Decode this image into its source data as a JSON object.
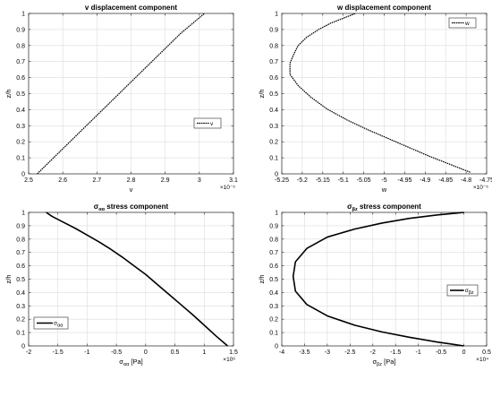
{
  "chart_data": [
    {
      "type": "line",
      "title": "v displacement component",
      "xlabel": "v",
      "ylabel": "z/h",
      "x_exponent": "×10⁻⁵",
      "xlim": [
        2.5,
        3.1
      ],
      "ylim": [
        0,
        1
      ],
      "xticks": [
        2.5,
        2.6,
        2.7,
        2.8,
        2.9,
        3.0,
        3.1
      ],
      "xtick_labels": [
        "2.5",
        "2.6",
        "2.7",
        "2.8",
        "2.9",
        "3",
        "3.1"
      ],
      "yticks": [
        0,
        0.1,
        0.2,
        0.3,
        0.4,
        0.5,
        0.6,
        0.7,
        0.8,
        0.9,
        1
      ],
      "ytick_labels": [
        "0",
        "0.1",
        "0.2",
        "0.3",
        "0.4",
        "0.5",
        "0.6",
        "0.7",
        "0.8",
        "0.9",
        "1"
      ],
      "legend": {
        "position": "middle-right",
        "style": "dashed"
      },
      "series": [
        {
          "name": "v",
          "style": "dashed",
          "width": 1.2,
          "x": [
            2.525,
            2.585,
            2.645,
            2.705,
            2.765,
            2.825,
            2.885,
            2.945,
            3.015
          ],
          "y": [
            0,
            0.125,
            0.25,
            0.375,
            0.5,
            0.625,
            0.75,
            0.875,
            1
          ]
        }
      ]
    },
    {
      "type": "line",
      "title": "w displacement component",
      "xlabel": "w",
      "ylabel": "z/h",
      "x_exponent": "×10⁻⁵",
      "xlim": [
        -5.25,
        -4.75
      ],
      "ylim": [
        0,
        1
      ],
      "xticks": [
        -5.25,
        -5.2,
        -5.15,
        -5.1,
        -5.05,
        -5.0,
        -4.95,
        -4.9,
        -4.85,
        -4.8,
        -4.75
      ],
      "xtick_labels": [
        "-5.25",
        "-5.2",
        "-5.15",
        "-5.1",
        "-5.05",
        "-5",
        "-4.95",
        "-4.9",
        "-4.85",
        "-4.8",
        "-4.75"
      ],
      "yticks": [
        0,
        0.1,
        0.2,
        0.3,
        0.4,
        0.5,
        0.6,
        0.7,
        0.8,
        0.9,
        1
      ],
      "ytick_labels": [
        "0",
        "0.1",
        "0.2",
        "0.3",
        "0.4",
        "0.5",
        "0.6",
        "0.7",
        "0.8",
        "0.9",
        "1"
      ],
      "legend": {
        "position": "top-right",
        "style": "dashed"
      },
      "series": [
        {
          "name": "w",
          "style": "dashed",
          "width": 1.2,
          "x": [
            -4.79,
            -4.84,
            -4.89,
            -4.94,
            -4.99,
            -5.04,
            -5.09,
            -5.14,
            -5.18,
            -5.21,
            -5.23,
            -5.23,
            -5.22,
            -5.21,
            -5.19,
            -5.16,
            -5.13,
            -5.1,
            -5.07
          ],
          "y": [
            0.01,
            0.06,
            0.11,
            0.165,
            0.22,
            0.275,
            0.335,
            0.405,
            0.48,
            0.55,
            0.62,
            0.69,
            0.75,
            0.8,
            0.85,
            0.9,
            0.94,
            0.97,
            1.0
          ]
        }
      ]
    },
    {
      "type": "line",
      "title": "σαα stress component",
      "title_symbol": "σ",
      "title_subscript": "αα",
      "title_rest": " stress component",
      "xlabel_symbol": "σ",
      "xlabel_subscript": "αα",
      "xlabel_rest": " [Pa]",
      "ylabel": "z/h",
      "x_exponent": "×10⁶",
      "xlim": [
        -2,
        1.5
      ],
      "ylim": [
        0,
        1
      ],
      "xticks": [
        -2,
        -1.5,
        -1,
        -0.5,
        0,
        0.5,
        1,
        1.5
      ],
      "xtick_labels": [
        "-2",
        "-1.5",
        "-1",
        "-0.5",
        "0",
        "0.5",
        "1",
        "1.5"
      ],
      "yticks": [
        0,
        0.1,
        0.2,
        0.3,
        0.4,
        0.5,
        0.6,
        0.7,
        0.8,
        0.9,
        1
      ],
      "ytick_labels": [
        "0",
        "0.1",
        "0.2",
        "0.3",
        "0.4",
        "0.5",
        "0.6",
        "0.7",
        "0.8",
        "0.9",
        "1"
      ],
      "legend": {
        "position": "bottom-left",
        "style": "solid"
      },
      "series": [
        {
          "name": "σαα",
          "name_symbol": "σ",
          "name_subscript": "αα",
          "style": "solid",
          "width": 1.6,
          "x": [
            1.4,
            1.2,
            1.0,
            0.8,
            0.6,
            0.4,
            0.2,
            0.0,
            -0.2,
            -0.4,
            -0.6,
            -0.8,
            -1.0,
            -1.2,
            -1.4,
            -1.6,
            -1.7
          ],
          "y": [
            0.0,
            0.075,
            0.155,
            0.235,
            0.31,
            0.385,
            0.46,
            0.535,
            0.6,
            0.665,
            0.725,
            0.78,
            0.83,
            0.88,
            0.925,
            0.97,
            1.0
          ]
        }
      ]
    },
    {
      "type": "line",
      "title": "σβz stress component",
      "title_symbol": "σ",
      "title_subscript": "βz",
      "title_rest": " stress component",
      "xlabel_symbol": "σ",
      "xlabel_subscript": "βz",
      "xlabel_rest": " [Pa]",
      "ylabel": "z/h",
      "x_exponent": "×10⁴",
      "xlim": [
        -4,
        0.5
      ],
      "ylim": [
        0,
        1
      ],
      "xticks": [
        -4,
        -3.5,
        -3,
        -2.5,
        -2,
        -1.5,
        -1,
        -0.5,
        0,
        0.5
      ],
      "xtick_labels": [
        "-4",
        "-3.5",
        "-3",
        "-2.5",
        "-2",
        "-1.5",
        "-1",
        "-0.5",
        "0",
        "0.5"
      ],
      "yticks": [
        0,
        0.1,
        0.2,
        0.3,
        0.4,
        0.5,
        0.6,
        0.7,
        0.8,
        0.9,
        1
      ],
      "ytick_labels": [
        "0",
        "0.1",
        "0.2",
        "0.3",
        "0.4",
        "0.5",
        "0.6",
        "0.7",
        "0.8",
        "0.9",
        "1"
      ],
      "legend": {
        "position": "middle-right",
        "style": "solid"
      },
      "series": [
        {
          "name": "σβz",
          "name_symbol": "σ",
          "name_subscript": "βz",
          "style": "solid",
          "width": 1.6,
          "x": [
            0,
            -0.6,
            -1.2,
            -1.8,
            -2.4,
            -3.0,
            -3.45,
            -3.7,
            -3.75,
            -3.7,
            -3.45,
            -3.0,
            -2.4,
            -1.8,
            -1.2,
            -0.6,
            0
          ],
          "y": [
            0,
            0.03,
            0.065,
            0.105,
            0.155,
            0.225,
            0.31,
            0.41,
            0.52,
            0.63,
            0.73,
            0.815,
            0.875,
            0.92,
            0.955,
            0.98,
            1.0
          ]
        }
      ]
    }
  ]
}
